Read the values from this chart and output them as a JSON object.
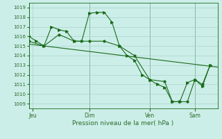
{
  "background_color": "#cceee8",
  "grid_color": "#aad4cc",
  "line_color": "#1a6b1a",
  "text_color": "#2a6b2a",
  "ylim": [
    1008.5,
    1019.5
  ],
  "yticks": [
    1009,
    1010,
    1011,
    1012,
    1013,
    1014,
    1015,
    1016,
    1017,
    1018,
    1019
  ],
  "xlabel": "Pression niveau de la mer( hPa )",
  "day_labels": [
    "Jeu",
    "Dim",
    "Ven",
    "Sam"
  ],
  "day_positions": [
    0.5,
    8,
    16,
    22
  ],
  "xlim": [
    0,
    25
  ],
  "series1_x": [
    0,
    1,
    2,
    3,
    4,
    5,
    6,
    7,
    8,
    9,
    10,
    11,
    12,
    13,
    14,
    15,
    16,
    17,
    18,
    19,
    20,
    21,
    22,
    23,
    24
  ],
  "series1_y": [
    1016.0,
    1015.5,
    1015.0,
    1017.0,
    1016.7,
    1016.5,
    1015.5,
    1015.5,
    1018.4,
    1018.5,
    1018.5,
    1017.5,
    1015.0,
    1014.0,
    1013.5,
    1012.0,
    1011.5,
    1011.0,
    1010.7,
    1009.2,
    1009.2,
    1011.2,
    1011.5,
    1010.8,
    1013.0
  ],
  "series2_x": [
    0,
    2,
    4,
    6,
    8,
    10,
    12,
    14,
    16,
    18,
    19,
    20,
    21,
    22,
    23,
    24
  ],
  "series2_y": [
    1015.5,
    1015.0,
    1016.2,
    1015.5,
    1015.5,
    1015.5,
    1015.0,
    1014.0,
    1011.5,
    1011.3,
    1009.2,
    1009.2,
    1009.2,
    1011.5,
    1011.0,
    1013.0
  ],
  "series3_x": [
    0,
    25
  ],
  "series3_y": [
    1015.2,
    1012.8
  ],
  "vline_positions": [
    0,
    8,
    16,
    22
  ]
}
